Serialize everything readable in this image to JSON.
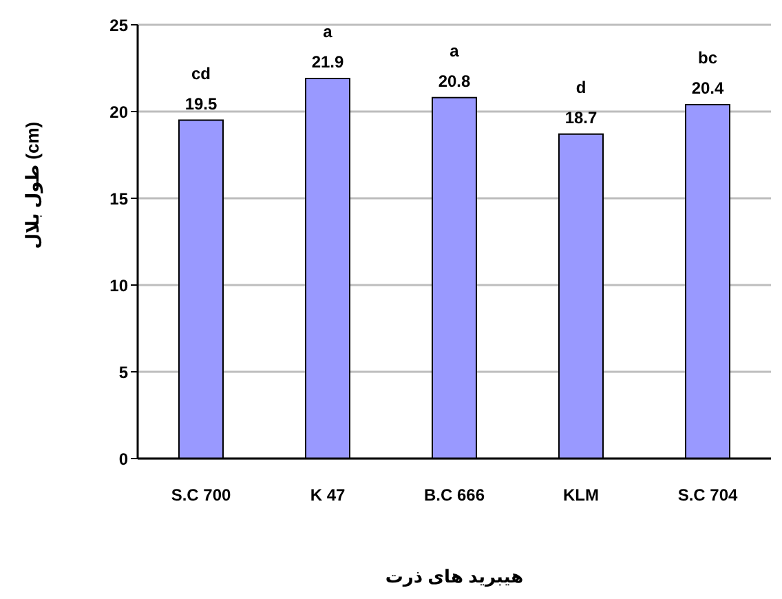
{
  "chart_data": {
    "type": "bar",
    "ylabel": "طول بلال (cm)",
    "xlabel": "هیبرید های ذرت",
    "categories": [
      "S.C 700",
      "K 47",
      "B.C 666",
      "KLM",
      "S.C 704"
    ],
    "values": [
      19.5,
      21.9,
      20.8,
      18.7,
      20.4
    ],
    "color": "#9999ff",
    "ylim": [
      0,
      25
    ],
    "yticks": [
      0,
      5,
      10,
      15,
      20,
      25
    ],
    "grid": "y",
    "data_labels": true,
    "annotations": [
      {
        "text": "cd",
        "x": "S.C 700",
        "y": 19.5
      },
      {
        "text": "a",
        "x": "K 47",
        "y": 21.9
      },
      {
        "text": "a",
        "x": "B.C 666",
        "y": 20.8
      },
      {
        "text": "d",
        "x": "KLM",
        "y": 18.7
      },
      {
        "text": "bc",
        "x": "S.C 704",
        "y": 20.4
      }
    ]
  }
}
